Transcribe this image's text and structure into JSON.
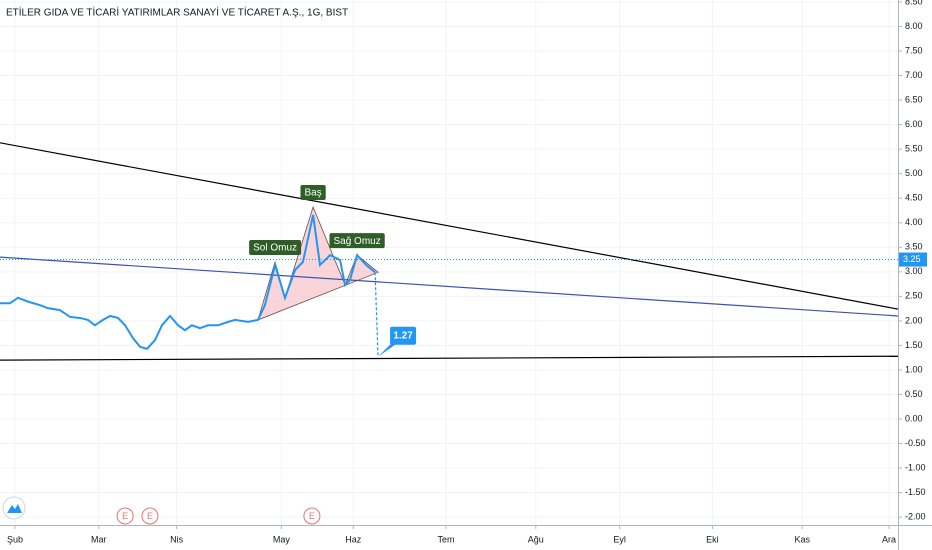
{
  "chart_data": {
    "type": "line",
    "title": "ETİLER GIDA VE TİCARİ YATIRIMLAR SANAYİ VE TİCARET A.Ş., 1G, BIST",
    "xlim": [
      0,
      300
    ],
    "ylim": [
      -2.16,
      8.54
    ],
    "xticks": [
      {
        "value": 5,
        "label": "Şub"
      },
      {
        "value": 33,
        "label": "Mar"
      },
      {
        "value": 59,
        "label": "Nis"
      },
      {
        "value": 94,
        "label": "May"
      },
      {
        "value": 118,
        "label": "Haz"
      },
      {
        "value": 149,
        "label": "Tem"
      },
      {
        "value": 179,
        "label": "Ağu"
      },
      {
        "value": 207,
        "label": "Eyl"
      },
      {
        "value": 238,
        "label": "Eki"
      },
      {
        "value": 268,
        "label": "Kas"
      },
      {
        "value": 297,
        "label": "Ara"
      }
    ],
    "yticks": [
      {
        "value": 8.5,
        "label": "8.50"
      },
      {
        "value": 8,
        "label": "8.00"
      },
      {
        "value": 7.5,
        "label": "7.50"
      },
      {
        "value": 7,
        "label": "7.00"
      },
      {
        "value": 6.5,
        "label": "6.50"
      },
      {
        "value": 6,
        "label": "6.00"
      },
      {
        "value": 5.5,
        "label": "5.50"
      },
      {
        "value": 5,
        "label": "5.00"
      },
      {
        "value": 4.5,
        "label": "4.50"
      },
      {
        "value": 4,
        "label": "4.00"
      },
      {
        "value": 3.5,
        "label": "3.50"
      },
      {
        "value": 3,
        "label": "3.00"
      },
      {
        "value": 2.5,
        "label": "2.50"
      },
      {
        "value": 2,
        "label": "2.00"
      },
      {
        "value": 1.5,
        "label": "1.50"
      },
      {
        "value": 1,
        "label": "1.00"
      },
      {
        "value": 0.5,
        "label": "0.50"
      },
      {
        "value": 0,
        "label": "0.00"
      },
      {
        "value": -0.5,
        "label": "-0.50"
      },
      {
        "value": -1,
        "label": "-1.00"
      },
      {
        "value": -1.5,
        "label": "-1.50"
      },
      {
        "value": -2,
        "label": "-2.00"
      }
    ],
    "grid": true,
    "series": [
      {
        "color": "#2196f3",
        "x": [
          0,
          3.3,
          6,
          10,
          13.4,
          16,
          20,
          23.4,
          26.7,
          29.4,
          31.7,
          34.4,
          36.8,
          39.4,
          41.8,
          44.4,
          46.8,
          49.1,
          51.8,
          54.1,
          56.8,
          59.5,
          61.8,
          64.1,
          66.8,
          69.5,
          72.8,
          76.2,
          78.5,
          82.9,
          86.2,
          88.5,
          91.9,
          95.2,
          98.6,
          101.2,
          104.6,
          106.9,
          110.3,
          113.6,
          115.3,
          116.9,
          119.3,
          122.3,
          125.3
        ],
        "values": [
          2.36,
          2.36,
          2.47,
          2.38,
          2.32,
          2.26,
          2.22,
          2.08,
          2.06,
          2.02,
          1.91,
          2.02,
          2.1,
          2.06,
          1.91,
          1.65,
          1.47,
          1.43,
          1.61,
          1.91,
          2.1,
          1.91,
          1.81,
          1.91,
          1.85,
          1.91,
          1.91,
          1.98,
          2.02,
          1.98,
          2.02,
          2.32,
          3.14,
          2.47,
          3.04,
          3.2,
          4.16,
          3.14,
          3.34,
          3.24,
          2.73,
          2.83,
          3.34,
          3.14,
          2.99
        ]
      }
    ],
    "drawings": [
      {
        "color": "#f8c9cf",
        "fill": true,
        "x": [
          86.2,
          91.9,
          95.2,
          104.6,
          115.3,
          119.3,
          126.3
        ],
        "y": [
          2.02,
          3.2,
          2.47,
          4.32,
          2.73,
          3.34,
          2.99
        ]
      },
      {
        "color": "#000000",
        "x": [
          0,
          300
        ],
        "y": [
          5.63,
          2.24
        ]
      },
      {
        "color": "#3f51b5",
        "x": [
          0,
          300
        ],
        "y": [
          3.3,
          2.1
        ]
      },
      {
        "color": "#000000",
        "x": [
          0,
          300
        ],
        "y": [
          1.2,
          1.28
        ]
      },
      {
        "color": "#2196f3",
        "dashed": true,
        "x": [
          125.3,
          126.3
        ],
        "y": [
          2.99,
          1.27
        ]
      }
    ],
    "annotations": [
      {
        "text": "Sol Omuz",
        "x": 91.9,
        "y": 3.2,
        "color": "#2e5d27"
      },
      {
        "text": "Baş",
        "x": 104.6,
        "y": 4.32,
        "color": "#2e5d27"
      },
      {
        "text": "Sağ Omuz",
        "x": 119.3,
        "y": 3.34,
        "color": "#2e5d27"
      }
    ],
    "target": {
      "value": 1.27,
      "x": 126.3,
      "color": "#2196f3"
    },
    "last_value": 3.25,
    "last_color": "#2196f3",
    "events": [
      {
        "label": "E",
        "x": 41.8
      },
      {
        "label": "E",
        "x": 50.1
      },
      {
        "label": "E",
        "x": 104.2
      }
    ]
  }
}
